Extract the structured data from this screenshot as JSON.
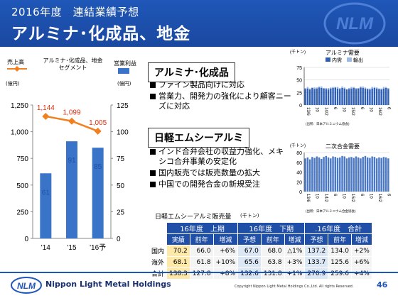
{
  "header": {
    "subtitle": "2016年度　連結業績予想",
    "title": "アルミナ･化成品、地金",
    "logo_text": "NLM"
  },
  "left_chart": {
    "legend_sales": "売上高",
    "legend_segment": "アルミナ･化成品、地金\nセグメント",
    "legend_profit": "営業利益",
    "unit_left": "(億円)",
    "unit_right": "(億円)",
    "colors": {
      "sales_line": "#f08020",
      "profit_bar": "#3a74c8"
    }
  },
  "chart_data": [
    {
      "type": "bar",
      "title": "",
      "categories": [
        "'14",
        "'15",
        "'16予"
      ],
      "series": [
        {
          "name": "売上高",
          "type": "line",
          "axis": "left",
          "values": [
            1144,
            1099,
            1005
          ]
        },
        {
          "name": "営業利益",
          "type": "bar",
          "axis": "right",
          "values": [
            61,
            91,
            85
          ]
        }
      ],
      "ylim_left": [
        0,
        1250
      ],
      "ylim_right": [
        0,
        125
      ],
      "yticks_left": [
        "0",
        "250",
        "500",
        "750",
        "1,000",
        "1,250"
      ],
      "yticks_right": [
        "0",
        "25",
        "50",
        "75",
        "100",
        "125"
      ],
      "data_labels_line": [
        "1,144",
        "1,099",
        "1,005"
      ],
      "data_labels_bar": [
        "61",
        "91",
        "85"
      ],
      "grid": false
    },
    {
      "type": "bar",
      "title": "アルミナ需要",
      "unit": "(千トン)",
      "legend": [
        "内需",
        "輸出"
      ],
      "ylim": [
        0,
        75
      ],
      "yticks": [
        "0",
        "25",
        "50",
        "75"
      ],
      "x_labels": [
        "13/6",
        "10",
        "14/2",
        "6",
        "10",
        "15/2",
        "6",
        "10",
        "16/2",
        "6"
      ],
      "source": "(出所：日本アルミニウム協会)",
      "series": [
        {
          "name": "内需",
          "values": [
            32,
            33,
            31,
            34,
            32,
            33,
            35,
            34,
            33,
            32,
            31,
            33,
            34,
            35,
            33,
            32,
            34,
            33,
            31,
            32,
            33,
            34,
            32,
            33,
            35,
            34,
            33,
            32,
            31,
            33,
            34,
            33,
            32,
            31,
            33,
            34,
            32
          ]
        },
        {
          "name": "輸出",
          "values": [
            2,
            3,
            2,
            1,
            3,
            2,
            2,
            3,
            1,
            2,
            3,
            2,
            2,
            1,
            3,
            2,
            3,
            2,
            1,
            2,
            3,
            2,
            2,
            1,
            2,
            3,
            2,
            1,
            2,
            3,
            2,
            2,
            1,
            2,
            3,
            2,
            2
          ]
        }
      ]
    },
    {
      "type": "bar",
      "title": "二次合金需要",
      "unit": "(千トン)",
      "ylim": [
        0,
        80
      ],
      "yticks": [
        "0",
        "20",
        "40",
        "60",
        "80"
      ],
      "x_labels": [
        "13/6",
        "10",
        "14/2",
        "6",
        "10",
        "15/2",
        "6",
        "10",
        "16/2",
        "6"
      ],
      "source": "(出所：日本アルミニウム合金協会)",
      "series": [
        {
          "name": "需要",
          "values": [
            68,
            70,
            66,
            71,
            69,
            72,
            70,
            67,
            71,
            73,
            70,
            68,
            72,
            71,
            69,
            70,
            73,
            72,
            68,
            70,
            71,
            69,
            72,
            70,
            68,
            71,
            73,
            70,
            69,
            72,
            71,
            68,
            70,
            69,
            71,
            70,
            68
          ]
        }
      ]
    }
  ],
  "section_alumina": {
    "heading": "アルミナ･化成品",
    "bullets": [
      "ファイン製品向けに対応",
      "営業力、開発力の強化により顧客ニーズに対応"
    ]
  },
  "section_nlm": {
    "heading": "日軽エムシーアルミ",
    "bullets": [
      "インド合弁会社の収益力強化、メキシコ合弁事業の安定化",
      "国内販売では販売数量の拡大",
      "中国での開発合金の新規受注"
    ]
  },
  "sales_table": {
    "caption": "日軽エムシーアルミ販売量",
    "unit": "(千トン)",
    "groups": [
      "16年度　上期",
      "16年度　下期",
      ".16年度　合計"
    ],
    "subheaders": [
      "実績",
      "前年",
      "増減",
      "予想",
      "前年",
      "増減",
      "予想",
      "前年",
      "増減"
    ],
    "rows": [
      {
        "label": "国内",
        "cells": [
          "70.2",
          "66.0",
          "+6%",
          "67.0",
          "68.0",
          "△1%",
          "137.2",
          "134.0",
          "+2%"
        ]
      },
      {
        "label": "海外",
        "cells": [
          "68.1",
          "61.8",
          "+10%",
          "65.6",
          "63.8",
          "+3%",
          "133.7",
          "125.6",
          "+6%"
        ]
      },
      {
        "label": "合計",
        "cells": [
          "138.3",
          "127.8",
          "+8%",
          "132.6",
          "131.8",
          "+1%",
          "270.9",
          "259.6",
          "+4%"
        ]
      }
    ]
  },
  "footer": {
    "company": "Nippon Light Metal Holdings",
    "copyright": "Copyright Nippon Light Metal Holdings Co.,Ltd. All rights Reserved.",
    "page": "46"
  }
}
